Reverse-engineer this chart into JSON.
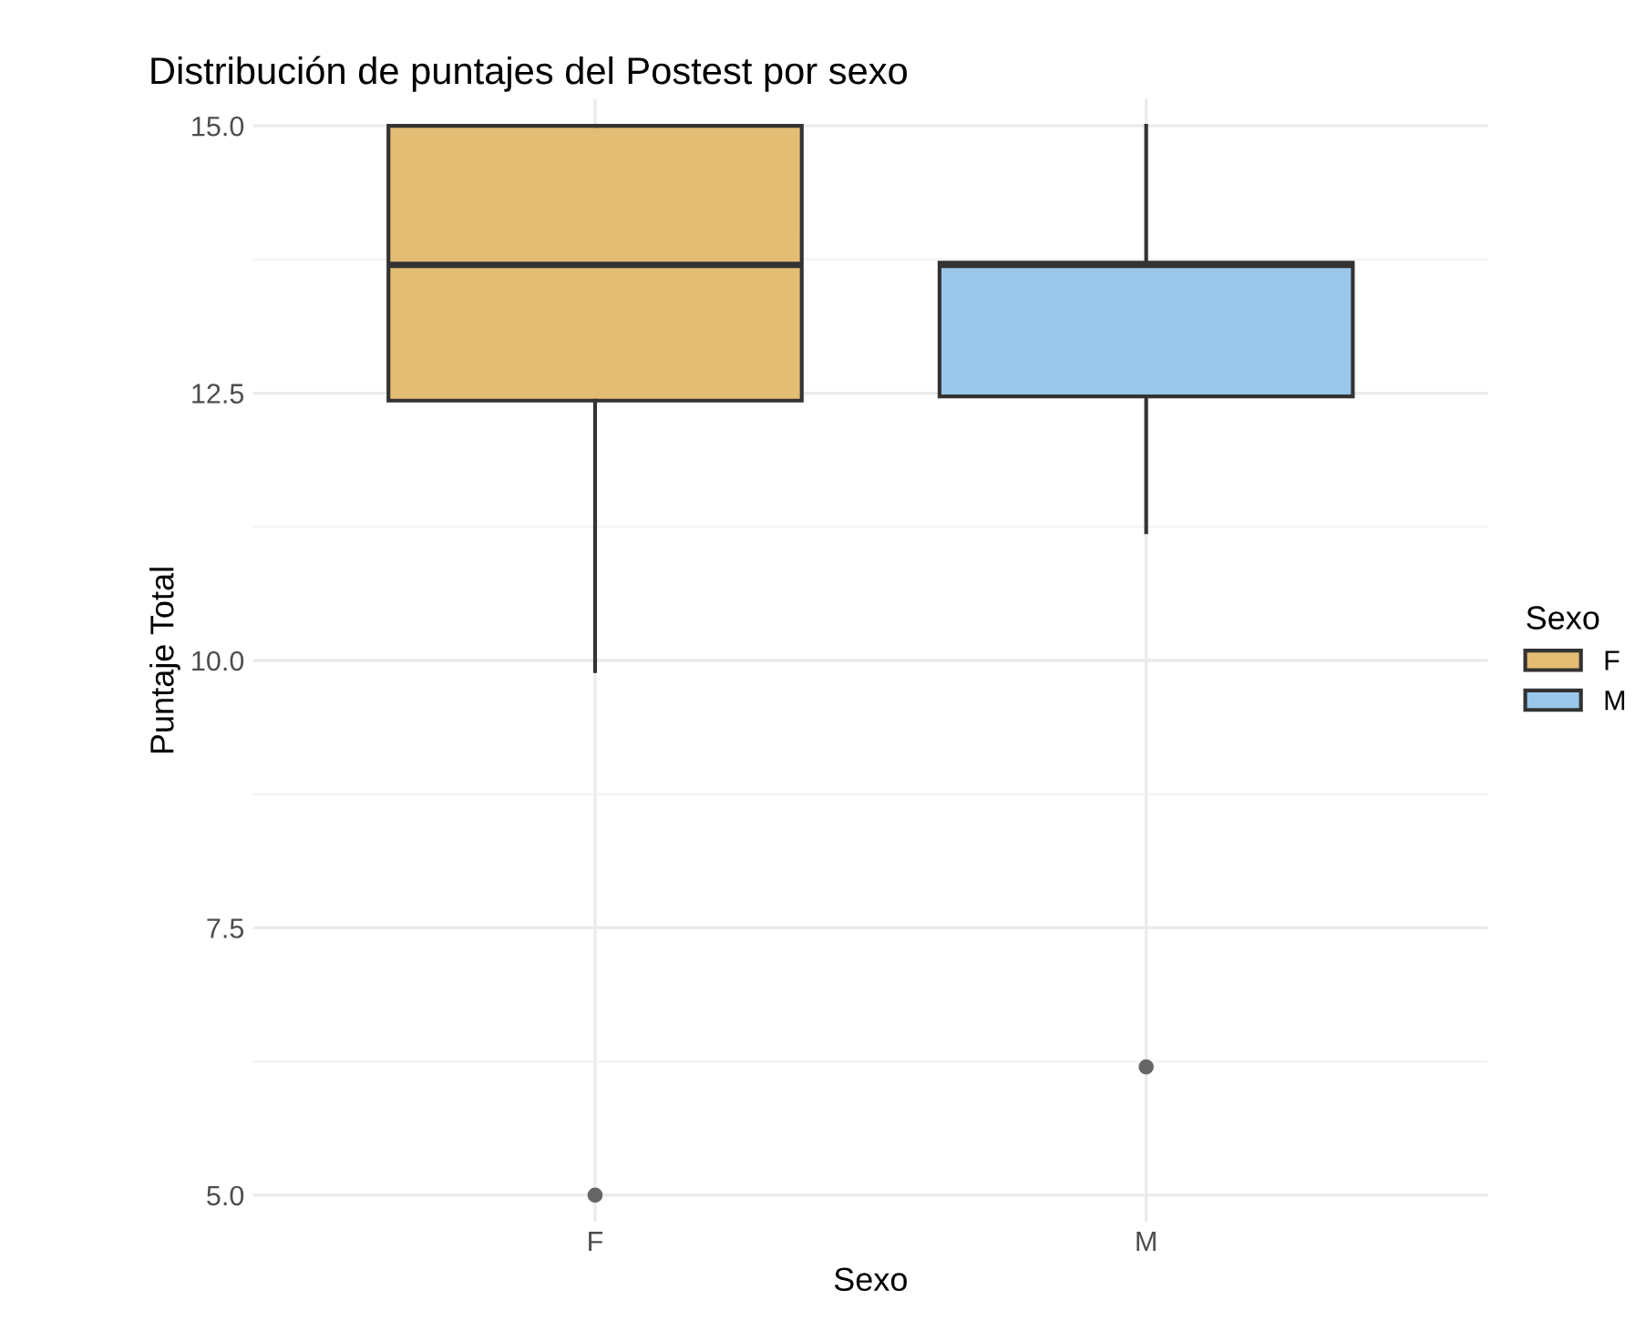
{
  "chart_data": {
    "type": "box",
    "title": "Distribución de puntajes del Postest por sexo",
    "xlabel": "Sexo",
    "ylabel": "Puntaje Total",
    "legend_title": "Sexo",
    "categories": [
      "F",
      "M"
    ],
    "series": [
      {
        "name": "F",
        "color": "#e3bd73",
        "boxes": [
          {
            "low": 9.9,
            "q1": 12.43,
            "median": 13.7,
            "q3": 15.0,
            "high": 15.0,
            "outliers": [
              5.0
            ]
          },
          null
        ]
      },
      {
        "name": "M",
        "color": "#9ac8ea",
        "boxes": [
          null,
          {
            "low": 11.2,
            "q1": 12.47,
            "median": 13.7,
            "q3": 13.72,
            "high": 15.0,
            "outliers": [
              6.2
            ]
          }
        ]
      }
    ],
    "ylim": [
      4.75,
      15.25
    ],
    "yticks": [
      {
        "value": 5.0,
        "label": "5.0"
      },
      7.5,
      {
        "value": 10.0,
        "label": "10.0"
      },
      12.5,
      {
        "value": 15.0,
        "label": "15.0"
      }
    ],
    "grid": true,
    "legend": "right"
  }
}
